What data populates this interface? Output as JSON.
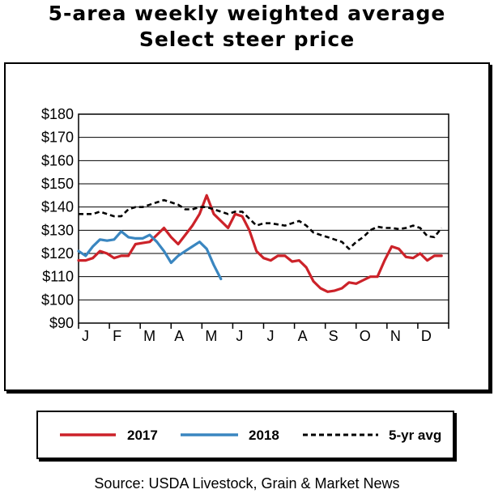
{
  "chart_data": {
    "type": "line",
    "title": "5-area weekly weighted average",
    "subtitle": "Select steer price",
    "source": "Source: USDA Livestock, Grain & Market News",
    "ylim": [
      90,
      180
    ],
    "ytick_values": [
      90,
      100,
      110,
      120,
      130,
      140,
      150,
      160,
      170,
      180
    ],
    "ytick_labels": [
      "$90",
      "$100",
      "$110",
      "$120",
      "$130",
      "$140",
      "$150",
      "$160",
      "$170",
      "$180"
    ],
    "xlim": [
      0,
      52
    ],
    "month_labels": [
      "J",
      "F",
      "M",
      "A",
      "M",
      "J",
      "J",
      "A",
      "S",
      "O",
      "N",
      "D"
    ],
    "grid": true,
    "legend_position": "bottom",
    "series": [
      {
        "name": "2017",
        "color": "#cc2229",
        "style": "solid",
        "x": [
          0,
          1,
          2,
          3,
          4,
          5,
          6,
          7,
          8,
          9,
          10,
          11,
          12,
          13,
          14,
          15,
          16,
          17,
          18,
          19,
          20,
          21,
          22,
          23,
          24,
          25,
          26,
          27,
          28,
          29,
          30,
          31,
          32,
          33,
          34,
          35,
          36,
          37,
          38,
          39,
          40,
          41,
          42,
          43,
          44,
          45,
          46,
          47,
          48,
          49,
          50,
          51
        ],
        "values": [
          117,
          117,
          118,
          121,
          120,
          118,
          119,
          119,
          124,
          124.5,
          125,
          128,
          131,
          127,
          124,
          128,
          132,
          137,
          145,
          137,
          134,
          131,
          137,
          136,
          130,
          121,
          118,
          117,
          119,
          119,
          116.5,
          117,
          114,
          108,
          105,
          103.5,
          104,
          105,
          107.5,
          107,
          108.5,
          110,
          110,
          117,
          123,
          122,
          118.5,
          118,
          120,
          117,
          119,
          119
        ]
      },
      {
        "name": "2018",
        "color": "#3a86c0",
        "style": "solid",
        "x": [
          0,
          1,
          2,
          3,
          4,
          5,
          6,
          7,
          8,
          9,
          10,
          11,
          12,
          13,
          14,
          15,
          16,
          17,
          18,
          19,
          20
        ],
        "values": [
          121,
          119,
          123,
          126,
          125.5,
          126,
          129.5,
          127,
          126.5,
          126.5,
          128,
          125,
          121,
          116,
          119,
          121,
          123,
          125,
          122,
          115,
          109
        ]
      },
      {
        "name": "5-yr avg",
        "color": "#000000",
        "style": "dashed",
        "x": [
          0,
          1,
          2,
          3,
          4,
          5,
          6,
          7,
          8,
          9,
          10,
          11,
          12,
          13,
          14,
          15,
          16,
          17,
          18,
          19,
          20,
          21,
          22,
          23,
          24,
          25,
          26,
          27,
          28,
          29,
          30,
          31,
          32,
          33,
          34,
          35,
          36,
          37,
          38,
          39,
          40,
          41,
          42,
          43,
          44,
          45,
          46,
          47,
          48,
          49,
          50,
          51
        ],
        "values": [
          137,
          137,
          137,
          138,
          137,
          136,
          136,
          139,
          140,
          140,
          141,
          142,
          143,
          142,
          141,
          139,
          139,
          140,
          140,
          139,
          138,
          137,
          138,
          138,
          135,
          132,
          133,
          133,
          132.5,
          132,
          133,
          134,
          132,
          129,
          128,
          127,
          126,
          125,
          122,
          125,
          127,
          130,
          131.5,
          131,
          131,
          130.5,
          131,
          132,
          131,
          127.5,
          127,
          131
        ]
      }
    ]
  }
}
